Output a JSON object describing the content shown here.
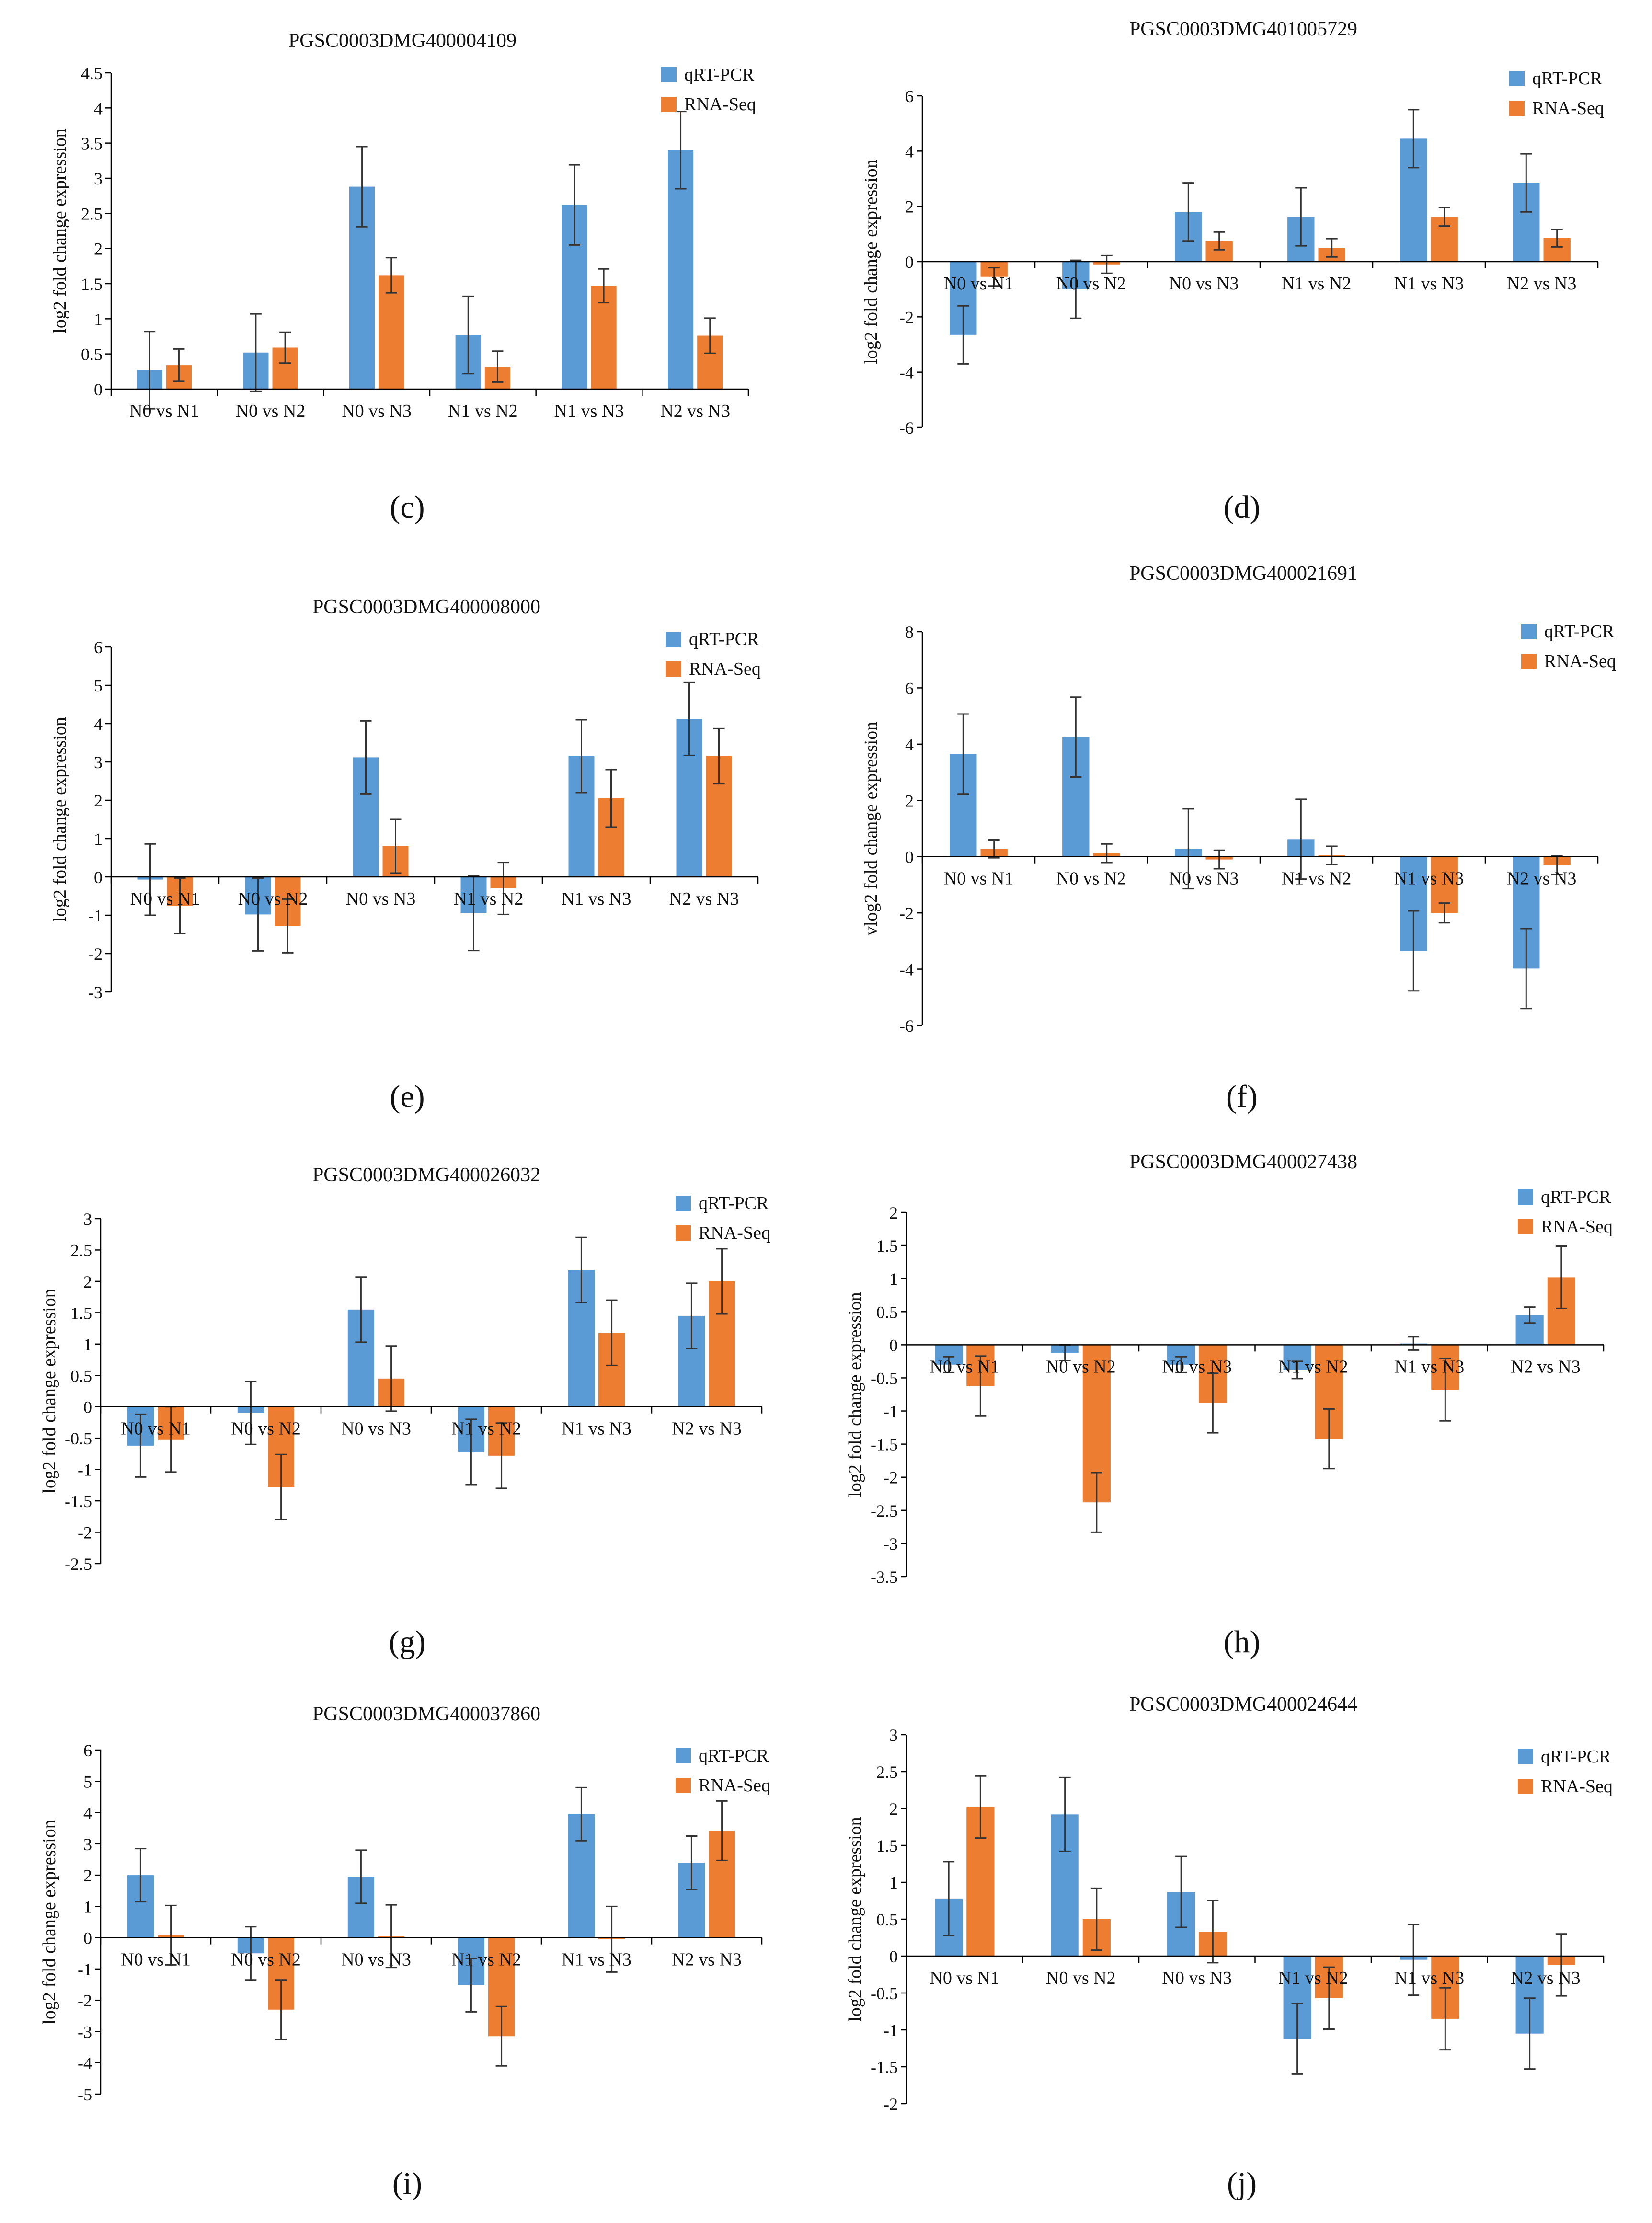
{
  "figure": {
    "series_names": [
      "qRT-PCR",
      "RNA-Seq"
    ],
    "colors": {
      "qrt": "#5B9BD5",
      "rna": "#ED7D31",
      "axis": "#000000",
      "error": "#333333"
    }
  },
  "chart_data": [
    {
      "type": "bar",
      "panel": "(c)",
      "title": "PGSC0003DMG400004109",
      "ylabel": "log2 fold change expression",
      "categories": [
        "N0 vs N1",
        "N0 vs N2",
        "N0 vs N3",
        "N1 vs N2",
        "N1 vs N3",
        "N2 vs N3"
      ],
      "ylim": [
        0,
        4.5
      ],
      "yticks": [
        "0",
        "0.5",
        "1",
        "1.5",
        "2",
        "2.5",
        "3",
        "3.5",
        "4",
        "4.5"
      ],
      "series": [
        {
          "name": "qRT-PCR",
          "values": [
            0.27,
            0.52,
            2.88,
            0.77,
            2.62,
            3.4
          ],
          "errors": [
            0.55,
            0.55,
            0.57,
            0.55,
            0.57,
            0.55
          ]
        },
        {
          "name": "RNA-Seq",
          "values": [
            0.34,
            0.59,
            1.62,
            0.32,
            1.47,
            0.76
          ],
          "errors": [
            0.23,
            0.22,
            0.25,
            0.22,
            0.24,
            0.25
          ]
        }
      ]
    },
    {
      "type": "bar",
      "panel": "(d)",
      "title": "PGSC0003DMG401005729",
      "ylabel": "log2 fold change expression",
      "categories": [
        "N0 vs N1",
        "N0 vs N2",
        "N0 vs N3",
        "N1 vs N2",
        "N1 vs N3",
        "N2 vs N3"
      ],
      "ylim": [
        -6,
        6
      ],
      "yticks": [
        "-6",
        "-4",
        "-2",
        "0",
        "2",
        "4",
        "6"
      ],
      "series": [
        {
          "name": "qRT-PCR",
          "values": [
            -2.65,
            -1.0,
            1.8,
            1.62,
            4.45,
            2.85
          ],
          "errors": [
            1.05,
            1.05,
            1.05,
            1.05,
            1.05,
            1.05
          ]
        },
        {
          "name": "RNA-Seq",
          "values": [
            -0.55,
            -0.1,
            0.75,
            0.5,
            1.62,
            0.85
          ],
          "errors": [
            0.33,
            0.32,
            0.32,
            0.33,
            0.33,
            0.32
          ]
        }
      ]
    },
    {
      "type": "bar",
      "panel": "(e)",
      "title": "PGSC0003DMG400008000",
      "ylabel": "log2 fold change expression",
      "categories": [
        "N0 vs N1",
        "N0 vs N2",
        "N0 vs N3",
        "N1 vs N2",
        "N1 vs N3",
        "N2 vs N3"
      ],
      "ylim": [
        -3,
        6
      ],
      "yticks": [
        "-3",
        "-2",
        "-1",
        "0",
        "1",
        "2",
        "3",
        "4",
        "5",
        "6"
      ],
      "series": [
        {
          "name": "qRT-PCR",
          "values": [
            -0.07,
            -0.98,
            3.12,
            -0.95,
            3.15,
            4.12
          ],
          "errors": [
            0.93,
            0.95,
            0.95,
            0.97,
            0.95,
            0.95
          ]
        },
        {
          "name": "RNA-Seq",
          "values": [
            -0.75,
            -1.28,
            0.8,
            -0.3,
            2.05,
            3.15
          ],
          "errors": [
            0.72,
            0.7,
            0.7,
            0.68,
            0.75,
            0.72
          ]
        }
      ]
    },
    {
      "type": "bar",
      "panel": "(f)",
      "title": "PGSC0003DMG400021691",
      "ylabel": "vlog2 fold change expression",
      "categories": [
        "N0 vs N1",
        "N0 vs N2",
        "N0 vs N3",
        "N1 vs N2",
        "N1 vs N3",
        "N2 vs N3"
      ],
      "ylim": [
        -6,
        8
      ],
      "yticks": [
        "-6",
        "-4",
        "-2",
        "0",
        "2",
        "4",
        "6",
        "8"
      ],
      "series": [
        {
          "name": "qRT-PCR",
          "values": [
            3.65,
            4.25,
            0.28,
            0.62,
            -3.35,
            -3.98
          ],
          "errors": [
            1.42,
            1.42,
            1.42,
            1.42,
            1.42,
            1.42
          ]
        },
        {
          "name": "RNA-Seq",
          "values": [
            0.28,
            0.12,
            -0.1,
            0.05,
            -2.0,
            -0.3
          ],
          "errors": [
            0.32,
            0.33,
            0.33,
            0.32,
            0.35,
            0.33
          ]
        }
      ]
    },
    {
      "type": "bar",
      "panel": "(g)",
      "title": "PGSC0003DMG400026032",
      "ylabel": "log2 fold change expression",
      "categories": [
        "N0 vs N1",
        "N0 vs N2",
        "N0 vs N3",
        "N1 vs N2",
        "N1 vs N3",
        "N2 vs N3"
      ],
      "ylim": [
        -2.5,
        3
      ],
      "yticks": [
        "-2.5",
        "-2",
        "-1.5",
        "-1",
        "-0.5",
        "0",
        "0.5",
        "1",
        "1.5",
        "2",
        "2.5",
        "3"
      ],
      "series": [
        {
          "name": "qRT-PCR",
          "values": [
            -0.62,
            -0.1,
            1.55,
            -0.72,
            2.18,
            1.45
          ],
          "errors": [
            0.5,
            0.5,
            0.52,
            0.52,
            0.52,
            0.52
          ]
        },
        {
          "name": "RNA-Seq",
          "values": [
            -0.52,
            -1.28,
            0.45,
            -0.78,
            1.18,
            2.0
          ],
          "errors": [
            0.52,
            0.52,
            0.52,
            0.52,
            0.52,
            0.52
          ]
        }
      ]
    },
    {
      "type": "bar",
      "panel": "(h)",
      "title": "PGSC0003DMG400027438",
      "ylabel": "log2 fold change expression",
      "categories": [
        "N0 vs N1",
        "N0 vs N2",
        "N0 vs N3",
        "N1 vs N2",
        "N1 vs N3",
        "N2 vs N3"
      ],
      "ylim": [
        -3.5,
        2
      ],
      "yticks": [
        "-3.5",
        "-3",
        "-2.5",
        "-2",
        "-1.5",
        "-1",
        "-0.5",
        "0",
        "0.5",
        "1",
        "1.5",
        "2"
      ],
      "series": [
        {
          "name": "qRT-PCR",
          "values": [
            -0.3,
            -0.12,
            -0.3,
            -0.38,
            0.02,
            0.45
          ],
          "errors": [
            0.12,
            0.12,
            0.12,
            0.13,
            0.1,
            0.12
          ]
        },
        {
          "name": "RNA-Seq",
          "values": [
            -0.62,
            -2.38,
            -0.88,
            -1.42,
            -0.68,
            1.02
          ],
          "errors": [
            0.45,
            0.45,
            0.45,
            0.45,
            0.47,
            0.47
          ]
        }
      ]
    },
    {
      "type": "bar",
      "panel": "(i)",
      "title": "PGSC0003DMG400037860",
      "ylabel": "log2 fold change expression",
      "categories": [
        "N0 vs N1",
        "N0 vs N2",
        "N0 vs N3",
        "N1 vs N2",
        "N1 vs N3",
        "N2 vs N3"
      ],
      "ylim": [
        -5,
        6
      ],
      "yticks": [
        "-5",
        "-4",
        "-3",
        "-2",
        "-1",
        "0",
        "1",
        "2",
        "3",
        "4",
        "5",
        "6"
      ],
      "series": [
        {
          "name": "qRT-PCR",
          "values": [
            2.0,
            -0.5,
            1.95,
            -1.52,
            3.95,
            2.4
          ],
          "errors": [
            0.85,
            0.85,
            0.85,
            0.85,
            0.85,
            0.85
          ]
        },
        {
          "name": "RNA-Seq",
          "values": [
            0.08,
            -2.3,
            0.05,
            -3.15,
            -0.05,
            3.42
          ],
          "errors": [
            0.95,
            0.95,
            1.0,
            0.95,
            1.05,
            0.95
          ]
        }
      ]
    },
    {
      "type": "bar",
      "panel": "(j)",
      "title": "PGSC0003DMG400024644",
      "ylabel": "log2 fold change expression",
      "categories": [
        "N0 vs N1",
        "N0 vs N2",
        "N0 vs N3",
        "N1 vs N2",
        "N1 vs N3",
        "N2 vs N3"
      ],
      "ylim": [
        -2,
        3
      ],
      "yticks": [
        "-2",
        "-1.5",
        "-1",
        "-0.5",
        "0",
        "0.5",
        "1",
        "1.5",
        "2",
        "2.5",
        "3"
      ],
      "series": [
        {
          "name": "qRT-PCR",
          "values": [
            0.78,
            1.92,
            0.87,
            -1.12,
            -0.05,
            -1.05
          ],
          "errors": [
            0.5,
            0.5,
            0.48,
            0.48,
            0.48,
            0.48
          ]
        },
        {
          "name": "RNA-Seq",
          "values": [
            2.02,
            0.5,
            0.33,
            -0.57,
            -0.85,
            -0.12
          ],
          "errors": [
            0.42,
            0.42,
            0.42,
            0.42,
            0.42,
            0.42
          ]
        }
      ]
    }
  ]
}
